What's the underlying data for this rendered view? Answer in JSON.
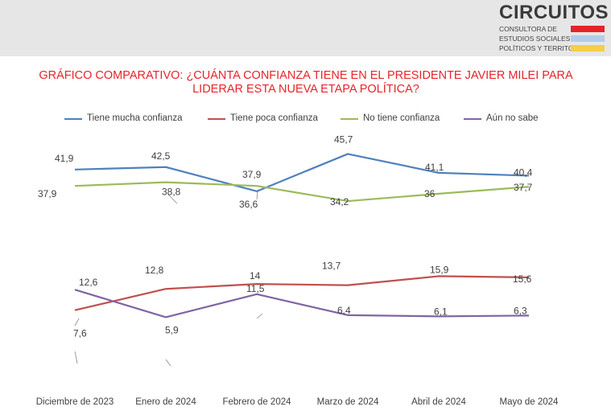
{
  "header": {
    "brand_name": "CIRCUITOS",
    "brand_line1": "CONSULTORA DE",
    "brand_line2": "ESTUDIOS SOCIALES,",
    "brand_line3": "POLÍTICOS Y TERRITORIALES",
    "bar_colors": {
      "red": "#e8222b",
      "blue": "#b3cde8",
      "yellow": "#f4cf47"
    },
    "band_color": "#e6e6e6"
  },
  "chart_data": {
    "type": "line",
    "title": "GRÁFICO COMPARATIVO: ¿CUÁNTA CONFIANZA TIENE EN EL PRESIDENTE JAVIER MILEI PARA LIDERAR ESTA NUEVA ETAPA POLÍTICA?",
    "categories": [
      "Diciembre de 2023",
      "Enero de 2024",
      "Febrero de 2024",
      "Marzo de 2024",
      "Abril de 2024",
      "Mayo de 2024"
    ],
    "series": [
      {
        "name": "Tiene mucha confianza",
        "color": "#4f81bd",
        "values": [
          41.9,
          42.5,
          36.6,
          45.7,
          41.1,
          40.4
        ],
        "labels": [
          "41,9",
          "42,5",
          "36,6",
          "45,7",
          "41,1",
          "40,4"
        ]
      },
      {
        "name": "Tiene poca confianza",
        "color": "#c0504d",
        "values": [
          7.6,
          12.8,
          14,
          13.7,
          15.9,
          15.6
        ],
        "labels": [
          "7,6",
          "12,8",
          "14",
          "13,7",
          "15,9",
          "15,6"
        ]
      },
      {
        "name": "No tiene confianza",
        "color": "#9bbb59",
        "values": [
          37.9,
          38.8,
          37.9,
          34.2,
          36,
          37.7
        ],
        "labels": [
          "37,9",
          "38,8",
          "37,9",
          "34,2",
          "36",
          "37,7"
        ]
      },
      {
        "name": "Aún no sabe",
        "color": "#8064a2",
        "values": [
          12.6,
          5.9,
          11.5,
          6.4,
          6.1,
          6.3
        ],
        "labels": [
          "12,6",
          "5,9",
          "11,5",
          "6,4",
          "6,1",
          "6,3"
        ]
      }
    ],
    "legend_position": "top",
    "grid": false
  }
}
